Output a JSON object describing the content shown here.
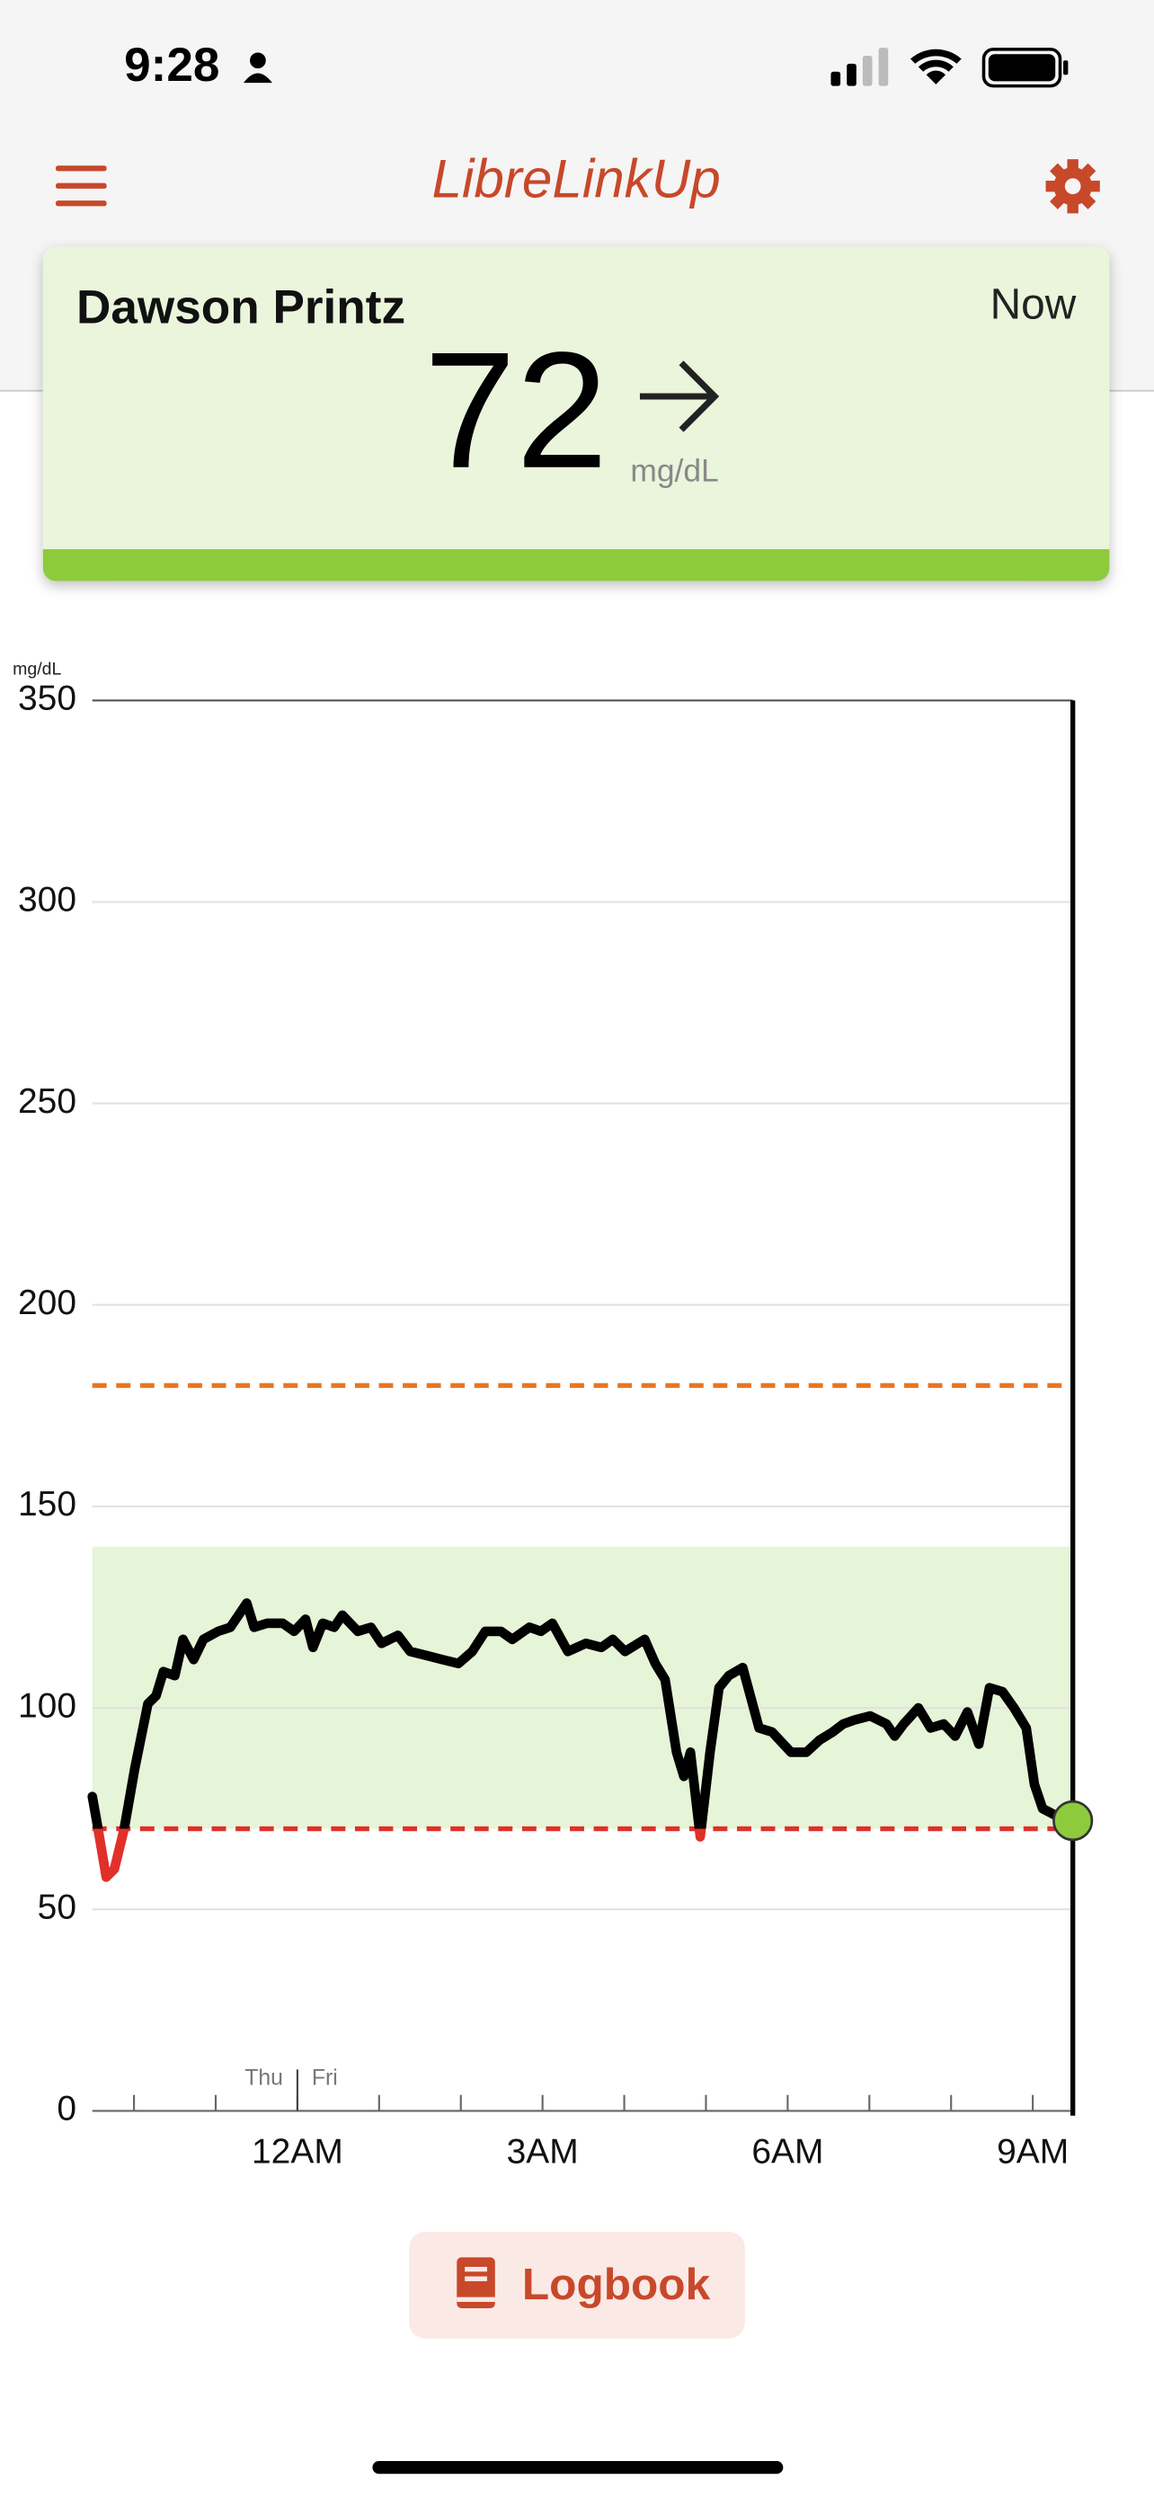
{
  "status_bar": {
    "time": "9:28"
  },
  "header": {
    "title": "LibreLinkUp"
  },
  "patient_card": {
    "name": "Dawson Printz",
    "time": "Now",
    "glucose": 72,
    "unit": "mg/dL"
  },
  "chart_data": {
    "type": "line",
    "y_axis_label": "mg/dL",
    "xlim": [
      -2.51,
      9.49
    ],
    "xticks": [
      {
        "value": 0,
        "label": "12AM"
      },
      {
        "value": 3,
        "label": "3AM"
      },
      {
        "value": 6,
        "label": "6AM"
      },
      {
        "value": 9,
        "label": "9AM"
      }
    ],
    "x_minor_ticks": [
      -2,
      -1,
      1,
      2,
      4,
      5,
      7,
      8
    ],
    "ylim": [
      0,
      350
    ],
    "yticks": [
      0,
      50,
      100,
      150,
      200,
      250,
      300,
      350
    ],
    "grid": true,
    "day_divider": {
      "x": 0,
      "before": "Thu",
      "after": "Fri"
    },
    "target_range": [
      70,
      140
    ],
    "target_color": "#e6f4d7",
    "high_threshold": 180,
    "high_color": "#e87722",
    "low_threshold": 70,
    "low_color": "#e0302a",
    "current_color": "#8dcb3c",
    "series": [
      {
        "color": "#000000",
        "x": [
          -2.51,
          -2.44,
          -2.34,
          -2.24,
          -2.12,
          -1.99,
          -1.83,
          -1.73,
          -1.64,
          -1.5,
          -1.4,
          -1.27,
          -1.15,
          -0.97,
          -0.82,
          -0.72,
          -0.62,
          -0.53,
          -0.37,
          -0.18,
          -0.04,
          0.1,
          0.19,
          0.31,
          0.45,
          0.55,
          0.74,
          0.9,
          1.03,
          1.23,
          1.38,
          1.58,
          1.77,
          1.97,
          2.14,
          2.3,
          2.49,
          2.63,
          2.84,
          2.98,
          3.12,
          3.31,
          3.53,
          3.72,
          3.86,
          4.01,
          4.25,
          4.38,
          4.5,
          4.64,
          4.73,
          4.81,
          4.93,
          5.05,
          5.16,
          5.28,
          5.45,
          5.65,
          5.81,
          6.04,
          6.23,
          6.39,
          6.55,
          6.68,
          6.82,
          7.01,
          7.21,
          7.31,
          7.42,
          7.6,
          7.75,
          7.91,
          8.05,
          8.2,
          8.34,
          8.47,
          8.63,
          8.77,
          8.92,
          9.02,
          9.12,
          9.31,
          9.49
        ],
        "values": [
          78,
          70,
          58,
          60,
          70,
          85,
          101,
          103,
          109,
          108,
          117,
          112,
          117,
          119,
          120,
          123,
          126,
          120,
          121,
          121,
          119,
          122,
          115,
          121,
          120,
          123,
          119,
          120,
          116,
          118,
          114,
          113,
          112,
          111,
          114,
          119,
          119,
          117,
          120,
          119,
          121,
          114,
          116,
          115,
          117,
          114,
          117,
          111,
          107,
          89,
          83,
          89,
          68,
          89,
          105,
          108,
          110,
          95,
          94,
          89,
          89,
          92,
          94,
          96,
          97,
          98,
          96,
          93,
          96,
          100,
          95,
          96,
          93,
          99,
          91,
          105,
          104,
          100,
          95,
          81,
          75,
          73,
          72
        ]
      }
    ]
  },
  "logbook_button": {
    "label": "Logbook"
  }
}
